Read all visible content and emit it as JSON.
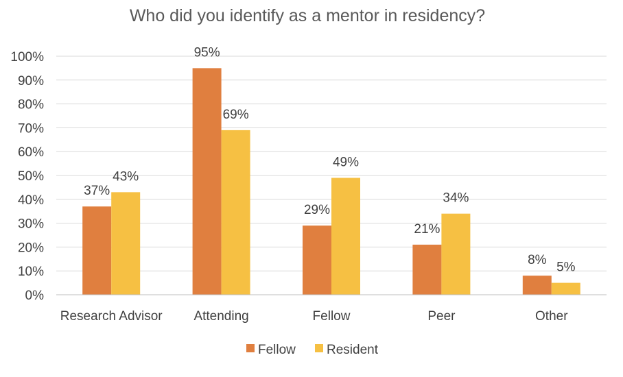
{
  "chart_data": {
    "type": "bar",
    "title": "Who did you identify as a mentor in residency?",
    "xlabel": "",
    "ylabel": "",
    "categories": [
      "Research Advisor",
      "Attending",
      "Fellow",
      "Peer",
      "Other"
    ],
    "series": [
      {
        "name": "Fellow",
        "color": "#E07F3F",
        "values": [
          37,
          95,
          29,
          21,
          8
        ],
        "labels": [
          "37%",
          "95%",
          "29%",
          "21%",
          "8%"
        ]
      },
      {
        "name": "Resident",
        "color": "#F6C043",
        "values": [
          43,
          69,
          49,
          34,
          5
        ],
        "labels": [
          "43%",
          "69%",
          "49%",
          "34%",
          "5%"
        ]
      }
    ],
    "ylim": [
      0,
      100
    ],
    "yticks": [
      0,
      10,
      20,
      30,
      40,
      50,
      60,
      70,
      80,
      90,
      100
    ],
    "ytick_labels": [
      "0%",
      "10%",
      "20%",
      "30%",
      "40%",
      "50%",
      "60%",
      "70%",
      "80%",
      "90%",
      "100%"
    ],
    "grid": true,
    "legend_position": "bottom"
  }
}
